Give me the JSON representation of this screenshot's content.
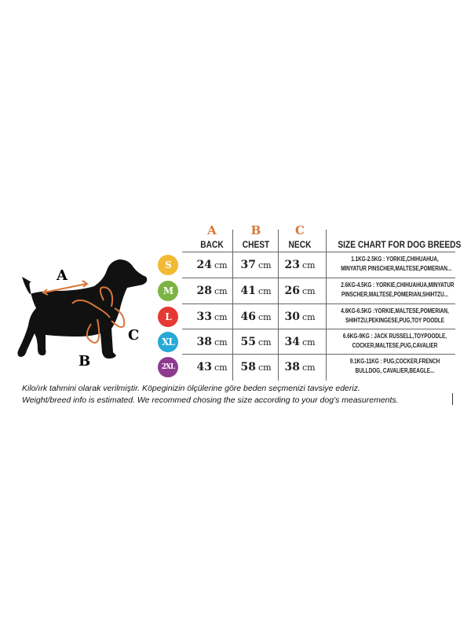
{
  "diagram": {
    "label_a": "A",
    "label_b": "B",
    "label_c": "C",
    "arrow_color": "#d9763a"
  },
  "table": {
    "columns": [
      {
        "letter": "A",
        "label": "BACK"
      },
      {
        "letter": "B",
        "label": "CHEST"
      },
      {
        "letter": "C",
        "label": "NECK"
      }
    ],
    "breeds_header": "SIZE CHART FOR DOG BREEDS",
    "unit": "cm",
    "rows": [
      {
        "size": "S",
        "color": "#f2b933",
        "back": "24",
        "chest": "37",
        "neck": "23",
        "breeds_line1": "1.1KG-2.5KG : YORKIE,CHIHUAHUA,",
        "breeds_line2": "MINYATUR PINSCHER,MALTESE,POMERIAN..."
      },
      {
        "size": "M",
        "color": "#7cb342",
        "back": "28",
        "chest": "41",
        "neck": "26",
        "breeds_line1": "2.6KG-4.5KG : YORKIE,CHIHUAHUA,MINYATUR",
        "breeds_line2": "PINSCHER,MALTESE,POMERIAN,SHIHTZU..."
      },
      {
        "size": "L",
        "color": "#e53935",
        "back": "33",
        "chest": "46",
        "neck": "30",
        "breeds_line1": "4.6KG-6.5KG :YORKIE,MALTESE,POMERIAN,",
        "breeds_line2": "SHIHTZU,PEKINGESE,PUG,TOY POODLE"
      },
      {
        "size": "XL",
        "color": "#26a9d6",
        "back": "38",
        "chest": "55",
        "neck": "34",
        "breeds_line1": "6.6KG-9KG : JACK RUSSELL,TOYPOODLE,",
        "breeds_line2": "COCKER,MALTESE,PUG,CAVALIER"
      },
      {
        "size": "2XL",
        "color": "#8e3a8e",
        "back": "43",
        "chest": "58",
        "neck": "38",
        "breeds_line1": "9.1KG-11KG : PUG,COCKER,FRENCH",
        "breeds_line2": "BULLDOG, CAVALIER,BEAGLE..."
      }
    ]
  },
  "notes": {
    "tr": "Kilo/ırk tahmini olarak verilmiştir. Köpeginizin ölçülerine göre beden seçmenizi tavsiye ederiz.",
    "en": "Weight/breed info is estimated. We recommed chosing the size according to your dog's measurements."
  }
}
